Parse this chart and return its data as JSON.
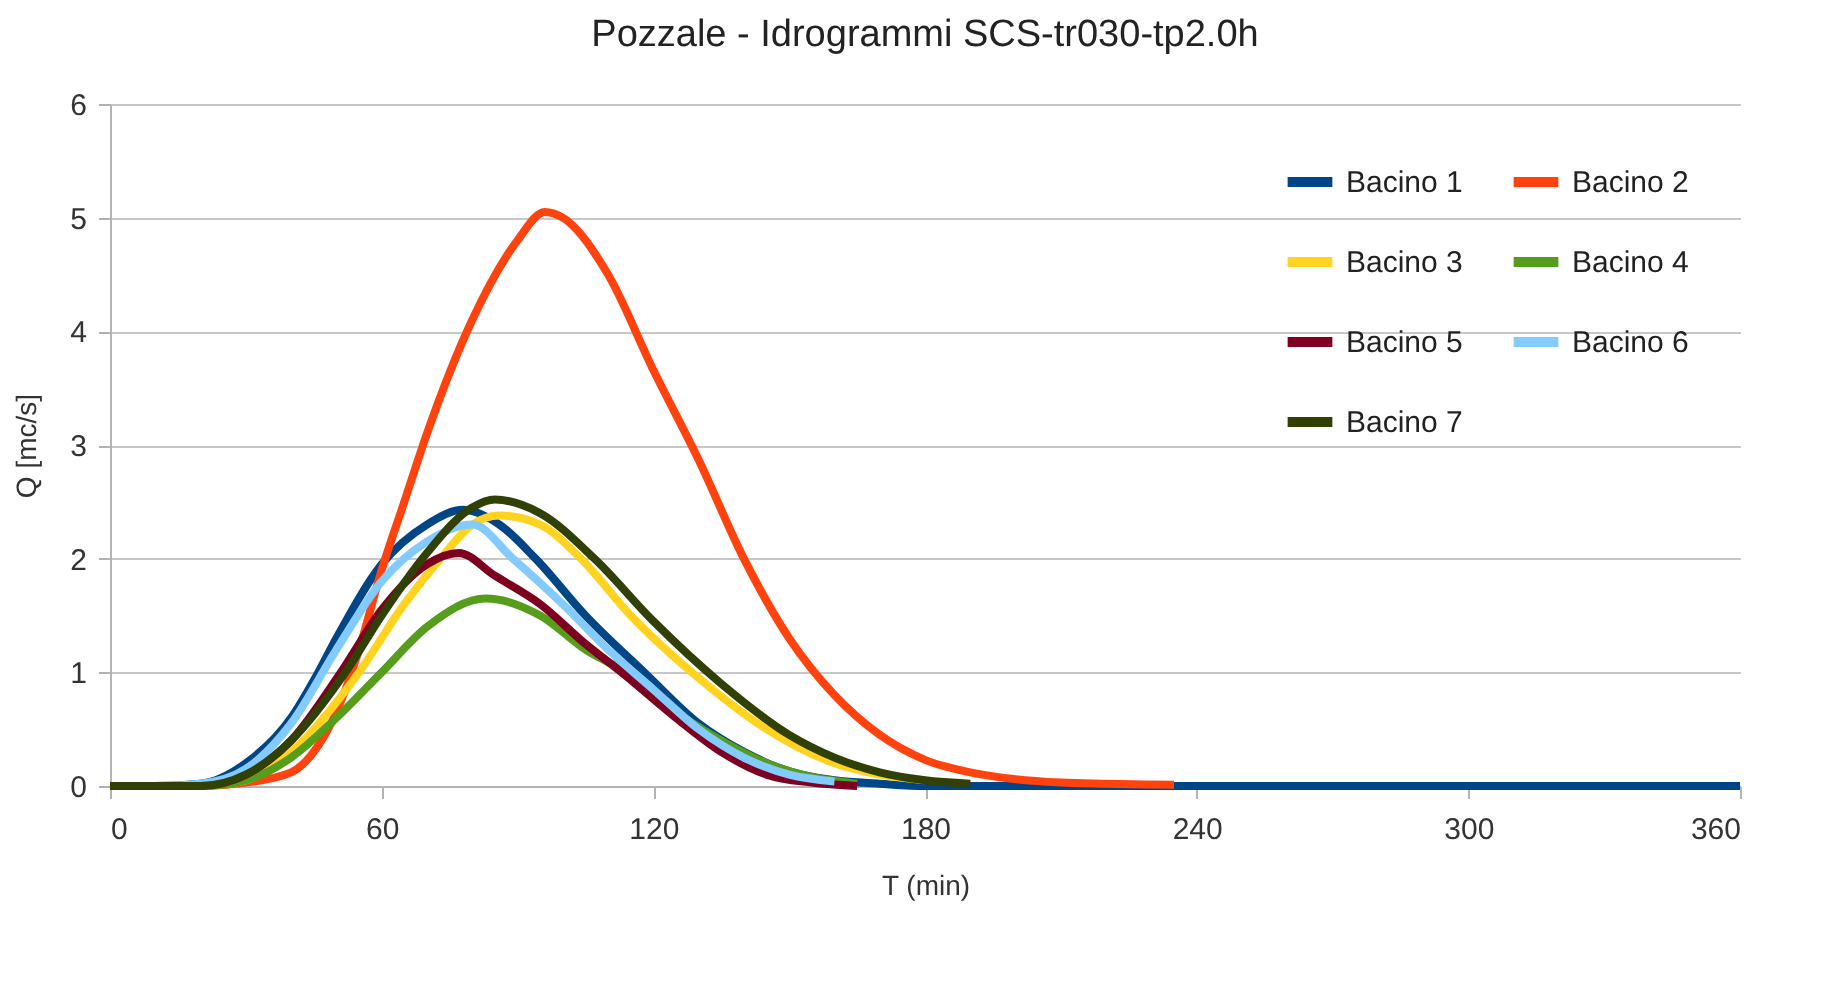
{
  "chart_data": {
    "type": "line",
    "title": "Pozzale - Idrogrammi SCS-tr030-tp2.0h",
    "xlabel": "T (min)",
    "ylabel": "Q [mc/s]",
    "xlim": [
      0,
      360
    ],
    "xticks": [
      0,
      60,
      120,
      180,
      240,
      300,
      360
    ],
    "ylim": [
      0,
      6
    ],
    "yticks": [
      0,
      1,
      2,
      3,
      4,
      5,
      6
    ],
    "grid": "y",
    "legend": "top right",
    "marker": "none",
    "line_style": "solid",
    "series": [
      {
        "name": "Bacino 1",
        "color": "#004586",
        "x": [
          0,
          10,
          20,
          30,
          40,
          46,
          50,
          60,
          70,
          78,
          86,
          94,
          105,
          118,
          130,
          140,
          150,
          160,
          170,
          180,
          240,
          300,
          360
        ],
        "values": [
          0,
          0,
          0.02,
          0.2,
          0.6,
          1.0,
          1.3,
          1.95,
          2.3,
          2.43,
          2.3,
          2.0,
          1.5,
          1.0,
          0.55,
          0.3,
          0.13,
          0.05,
          0.02,
          0,
          0,
          0,
          0
        ]
      },
      {
        "name": "Bacino 2",
        "color": "#ff420e",
        "x": [
          0,
          10,
          20,
          30,
          40,
          45,
          50,
          55,
          60,
          65,
          70,
          80,
          90,
          96,
          100,
          110,
          120,
          130,
          140,
          150,
          160,
          170,
          180,
          190,
          200,
          210,
          220,
          235
        ],
        "values": [
          0,
          0,
          0,
          0.03,
          0.12,
          0.3,
          0.65,
          1.2,
          1.9,
          2.5,
          3.1,
          4.1,
          4.8,
          5.05,
          5.0,
          4.5,
          3.66,
          2.87,
          2.0,
          1.3,
          0.8,
          0.45,
          0.23,
          0.12,
          0.06,
          0.03,
          0.02,
          0.01
        ]
      },
      {
        "name": "Bacino 3",
        "color": "#ffd320",
        "x": [
          20,
          30,
          40,
          55,
          65,
          73,
          80,
          86,
          95,
          104,
          115,
          130,
          145,
          160,
          170,
          180
        ],
        "values": [
          0,
          0.05,
          0.3,
          1.0,
          1.6,
          2.0,
          2.3,
          2.38,
          2.3,
          2.0,
          1.5,
          0.95,
          0.5,
          0.2,
          0.1,
          0.05
        ]
      },
      {
        "name": "Bacino 4",
        "color": "#579d1c",
        "x": [
          0,
          10,
          20,
          30,
          40,
          50,
          60,
          70,
          83,
          95,
          105,
          114,
          125,
          135,
          145,
          155,
          165
        ],
        "values": [
          0,
          0,
          0,
          0.05,
          0.25,
          0.6,
          1.0,
          1.4,
          1.65,
          1.5,
          1.2,
          1.0,
          0.65,
          0.4,
          0.2,
          0.08,
          0.02
        ]
      },
      {
        "name": "Bacino 5",
        "color": "#7e0021",
        "x": [
          20,
          30,
          40,
          51,
          60,
          70,
          77,
          85,
          95,
          105,
          113,
          125,
          135,
          145,
          155,
          165
        ],
        "values": [
          0,
          0.1,
          0.4,
          1.0,
          1.55,
          1.95,
          2.05,
          1.85,
          1.6,
          1.25,
          1.0,
          0.6,
          0.3,
          0.1,
          0.03,
          0
        ]
      },
      {
        "name": "Bacino 6",
        "color": "#83caff",
        "x": [
          0,
          10,
          20,
          30,
          40,
          50,
          60,
          70,
          80,
          89,
          100,
          110,
          120,
          130,
          140,
          150,
          160
        ],
        "values": [
          0,
          0,
          0.02,
          0.15,
          0.55,
          1.2,
          1.8,
          2.15,
          2.3,
          2.0,
          1.6,
          1.2,
          0.85,
          0.5,
          0.25,
          0.1,
          0.04
        ]
      },
      {
        "name": "Bacino 7",
        "color": "#314004",
        "x": [
          0,
          10,
          20,
          30,
          40,
          52,
          60,
          70,
          80,
          85,
          95,
          107,
          120,
          135,
          150,
          160,
          170,
          180,
          190
        ],
        "values": [
          0,
          0,
          0,
          0.1,
          0.4,
          1.0,
          1.5,
          2.05,
          2.45,
          2.52,
          2.4,
          2.0,
          1.45,
          0.9,
          0.45,
          0.25,
          0.12,
          0.05,
          0.02
        ]
      }
    ]
  }
}
